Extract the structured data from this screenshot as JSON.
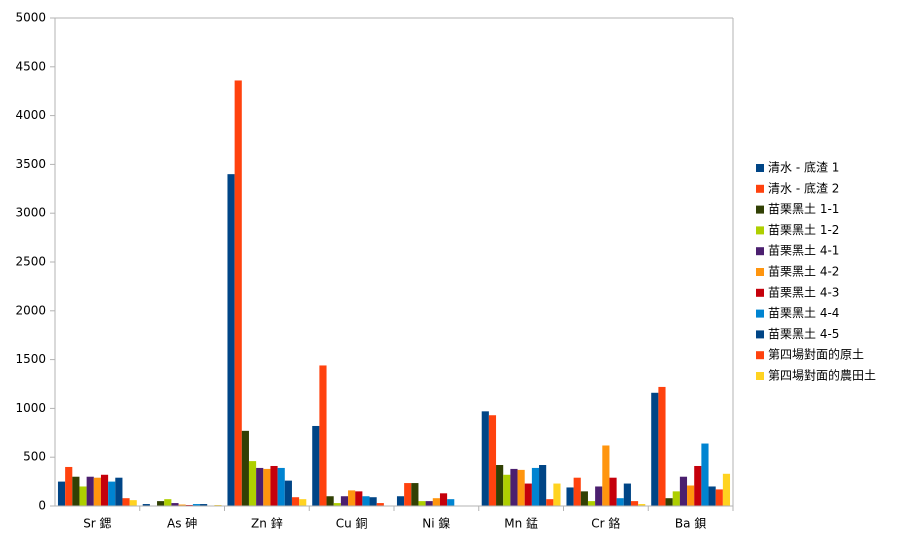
{
  "chart_data": {
    "type": "bar",
    "categories": [
      "Sr 鍶",
      "As 砷",
      "Zn 鋅",
      "Cu 銅",
      "Ni 鎳",
      "Mn 錳",
      "Cr 鉻",
      "Ba 鋇"
    ],
    "series": [
      {
        "name": "清水 - 底渣 1",
        "color": "#004586",
        "values": [
          250,
          20,
          3400,
          820,
          100,
          970,
          190,
          1160
        ]
      },
      {
        "name": "清水 - 底渣 2",
        "color": "#ff420e",
        "values": [
          400,
          0,
          4360,
          1440,
          235,
          930,
          290,
          1220
        ]
      },
      {
        "name": "苗栗黑土 1-1",
        "color": "#314004",
        "values": [
          300,
          50,
          770,
          100,
          235,
          420,
          150,
          80
        ]
      },
      {
        "name": "苗栗黑土 1-2",
        "color": "#aecf00",
        "values": [
          200,
          70,
          460,
          30,
          50,
          320,
          50,
          150
        ]
      },
      {
        "name": "苗栗黑土 4-1",
        "color": "#4b1f6f",
        "values": [
          300,
          30,
          390,
          100,
          50,
          380,
          200,
          300
        ]
      },
      {
        "name": "苗栗黑土 4-2",
        "color": "#ff950e",
        "values": [
          290,
          15,
          380,
          160,
          80,
          370,
          620,
          210
        ]
      },
      {
        "name": "苗栗黑土 4-3",
        "color": "#c5000b",
        "values": [
          320,
          10,
          410,
          150,
          130,
          230,
          290,
          410
        ]
      },
      {
        "name": "苗栗黑土 4-4",
        "color": "#0084d1",
        "values": [
          250,
          20,
          390,
          100,
          70,
          390,
          80,
          640
        ]
      },
      {
        "name": "苗栗黑土 4-5",
        "color": "#004586",
        "values": [
          290,
          20,
          260,
          90,
          0,
          420,
          230,
          200
        ]
      },
      {
        "name": "第四場對面的原土",
        "color": "#ff420e",
        "values": [
          80,
          0,
          90,
          30,
          0,
          70,
          50,
          170
        ]
      },
      {
        "name": "第四場對面的農田土",
        "color": "#ffd320",
        "values": [
          60,
          10,
          70,
          0,
          0,
          230,
          20,
          330
        ]
      }
    ],
    "ylim": [
      0,
      5000
    ],
    "yticks": [
      0,
      500,
      1000,
      1500,
      2000,
      2500,
      3000,
      3500,
      4000,
      4500,
      5000
    ],
    "grid": false,
    "legend": "right"
  }
}
